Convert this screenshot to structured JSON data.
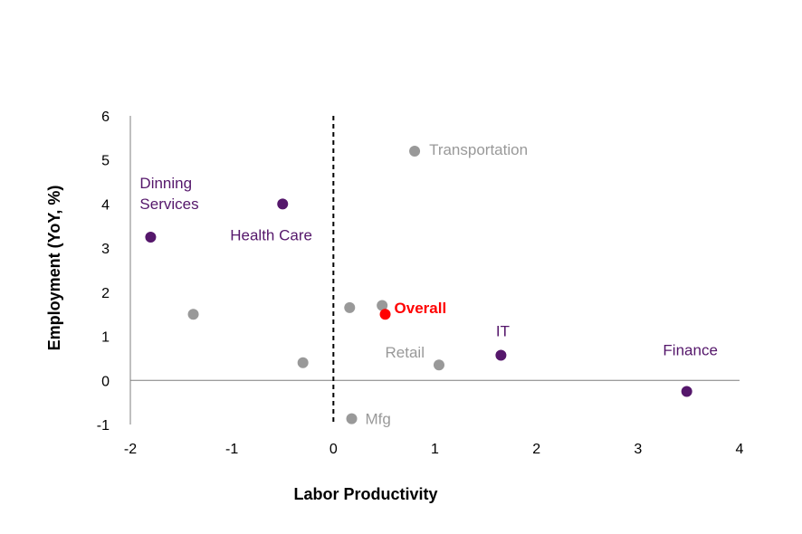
{
  "chart_data": {
    "type": "scatter",
    "title": "",
    "xlabel": "Labor Productivity",
    "ylabel": "Employment (YoY, %)",
    "xlim": [
      -2,
      4
    ],
    "ylim": [
      -1,
      6
    ],
    "x_ticks": [
      "-2",
      "-1",
      "0",
      "1",
      "2",
      "3",
      "4"
    ],
    "y_ticks": [
      "6",
      "5",
      "4",
      "3",
      "2",
      "1",
      "0",
      "-1"
    ],
    "reference_line": {
      "axis": "x",
      "value": 0,
      "style": "dashed"
    },
    "grid": false,
    "colors": {
      "purple": "#55176B",
      "gray": "#999999",
      "red": "#FF0000"
    },
    "points": [
      {
        "label": "Transportation",
        "x": 0.8,
        "y": 5.2,
        "color": "gray"
      },
      {
        "label": "Health Care",
        "x": -0.5,
        "y": 4.0,
        "color": "purple"
      },
      {
        "label": "Dinning Services",
        "x": -1.8,
        "y": 3.25,
        "color": "purple"
      },
      {
        "label": "",
        "x": -1.38,
        "y": 1.5,
        "color": "gray"
      },
      {
        "label": "",
        "x": 0.16,
        "y": 1.65,
        "color": "gray"
      },
      {
        "label": "",
        "x": 0.48,
        "y": 1.7,
        "color": "gray"
      },
      {
        "label": "Overall",
        "x": 0.51,
        "y": 1.5,
        "color": "red"
      },
      {
        "label": "",
        "x": -0.3,
        "y": 0.4,
        "color": "gray"
      },
      {
        "label": "Retail",
        "x": 1.04,
        "y": 0.35,
        "color": "gray"
      },
      {
        "label": "IT",
        "x": 1.65,
        "y": 0.57,
        "color": "purple"
      },
      {
        "label": "Finance",
        "x": 3.48,
        "y": -0.25,
        "color": "purple"
      },
      {
        "label": "Mfg",
        "x": 0.18,
        "y": -0.87,
        "color": "gray"
      }
    ]
  }
}
